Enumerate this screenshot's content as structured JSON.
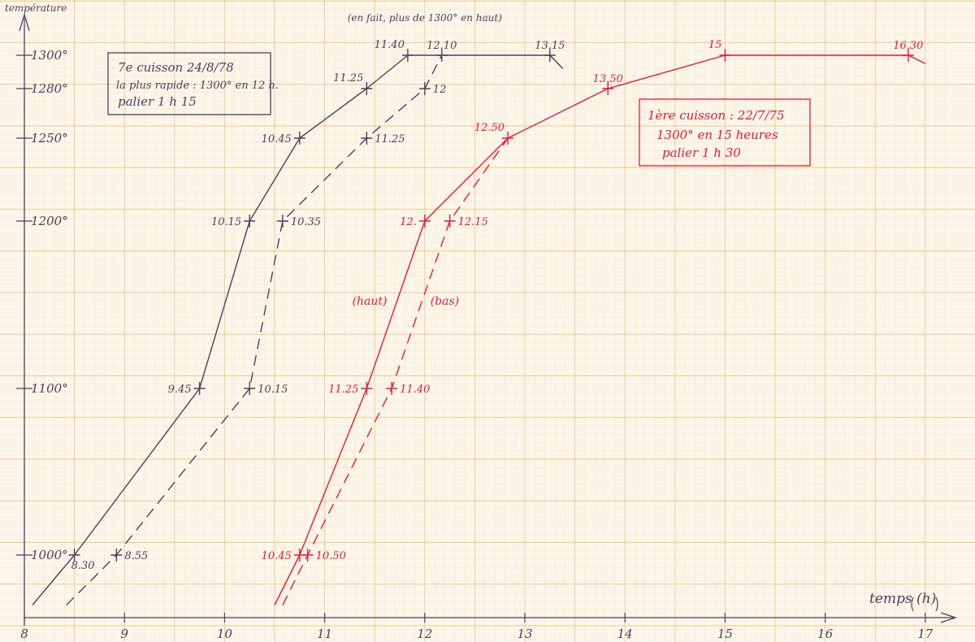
{
  "chart_data": {
    "type": "line",
    "ylabel": "température",
    "xlabel": "temps (h)",
    "x_ticks": [
      "8",
      "9",
      "10",
      "11",
      "12",
      "13",
      "14",
      "15",
      "16",
      "17"
    ],
    "y_ticks": [
      {
        "value": 1000,
        "label": "1000°"
      },
      {
        "value": 1100,
        "label": "1100°"
      },
      {
        "value": 1200,
        "label": "1200°"
      },
      {
        "value": 1250,
        "label": "1250°"
      },
      {
        "value": 1280,
        "label": "1280°"
      },
      {
        "value": 1300,
        "label": "1300°"
      }
    ],
    "xlim": [
      8,
      17
    ],
    "ylim": [
      970,
      1310
    ],
    "grid": true,
    "series": [
      {
        "color": "#4a3f5f",
        "dash": false,
        "points": [
          {
            "x": 8.08,
            "y": 970
          },
          {
            "x": 8.5,
            "y": 1000,
            "label": "8.30",
            "anchor": "below-right"
          },
          {
            "x": 9.75,
            "y": 1100,
            "label": "9.45",
            "anchor": "left"
          },
          {
            "x": 10.25,
            "y": 1200,
            "label": "10.15",
            "anchor": "left"
          },
          {
            "x": 10.75,
            "y": 1250,
            "label": "10.45",
            "anchor": "left"
          },
          {
            "x": 11.42,
            "y": 1280,
            "label": "11.25",
            "anchor": "above-left"
          },
          {
            "x": 11.83,
            "y": 1300,
            "label": "11.40",
            "anchor": "above-left"
          },
          {
            "x": 12.17,
            "y": 1300,
            "label": "12.10",
            "anchor": "above"
          },
          {
            "x": 13.25,
            "y": 1300,
            "label": "13.15",
            "anchor": "above"
          },
          {
            "x": 13.38,
            "y": 1292
          }
        ]
      },
      {
        "color": "#4a3f5f",
        "dash": true,
        "points": [
          {
            "x": 8.42,
            "y": 970
          },
          {
            "x": 8.92,
            "y": 1000,
            "label": "8.55",
            "anchor": "right"
          },
          {
            "x": 10.25,
            "y": 1100,
            "label": "10.15",
            "anchor": "right"
          },
          {
            "x": 10.58,
            "y": 1200,
            "label": "10.35",
            "anchor": "right"
          },
          {
            "x": 11.42,
            "y": 1250,
            "label": "11.25",
            "anchor": "right"
          },
          {
            "x": 12.0,
            "y": 1280,
            "label": "12",
            "anchor": "right"
          },
          {
            "x": 12.17,
            "y": 1300
          }
        ]
      },
      {
        "color": "#e8173c",
        "dash": false,
        "points": [
          {
            "x": 10.5,
            "y": 970
          },
          {
            "x": 10.75,
            "y": 1000,
            "label": "10.45",
            "anchor": "left"
          },
          {
            "x": 11.42,
            "y": 1100,
            "label": "11.25",
            "anchor": "left"
          },
          {
            "x": 12.0,
            "y": 1200,
            "label": "12.",
            "anchor": "left"
          },
          {
            "x": 12.83,
            "y": 1250,
            "label": "12.50",
            "anchor": "above-left"
          },
          {
            "x": 13.83,
            "y": 1280,
            "label": "13.50",
            "anchor": "above"
          },
          {
            "x": 15.0,
            "y": 1300,
            "label": "15",
            "anchor": "above-left"
          },
          {
            "x": 16.83,
            "y": 1300,
            "label": "16.30",
            "anchor": "above"
          },
          {
            "x": 17.0,
            "y": 1295
          }
        ]
      },
      {
        "color": "#e8173c",
        "dash": true,
        "points": [
          {
            "x": 10.58,
            "y": 970
          },
          {
            "x": 10.83,
            "y": 1000,
            "label": "10.50",
            "anchor": "right"
          },
          {
            "x": 11.67,
            "y": 1100,
            "label": "11.40",
            "anchor": "right"
          },
          {
            "x": 12.25,
            "y": 1200,
            "label": "12.15",
            "anchor": "right"
          },
          {
            "x": 12.83,
            "y": 1250
          }
        ]
      }
    ],
    "annotations": [
      {
        "text": "(en fait, plus de 1300° en haut)",
        "color": "#4a3f5f",
        "x": 12.0,
        "y": 1322
      },
      {
        "text": "(haut)",
        "color": "#e8173c",
        "x": 11.45,
        "y": 1152
      },
      {
        "text": "(bas)",
        "color": "#e8173c",
        "x": 12.2,
        "y": 1152
      }
    ],
    "boxes": [
      {
        "color": "#4a3f5f",
        "lines": [
          "7e cuisson 24/8/78",
          "la plus rapide : 1300° en 12 h.",
          "palier 1 h 15"
        ]
      },
      {
        "color": "#e8173c",
        "lines": [
          "1ère cuisson : 22/7/75",
          "1300° en 15 heures",
          "palier 1 h 30"
        ]
      }
    ]
  }
}
